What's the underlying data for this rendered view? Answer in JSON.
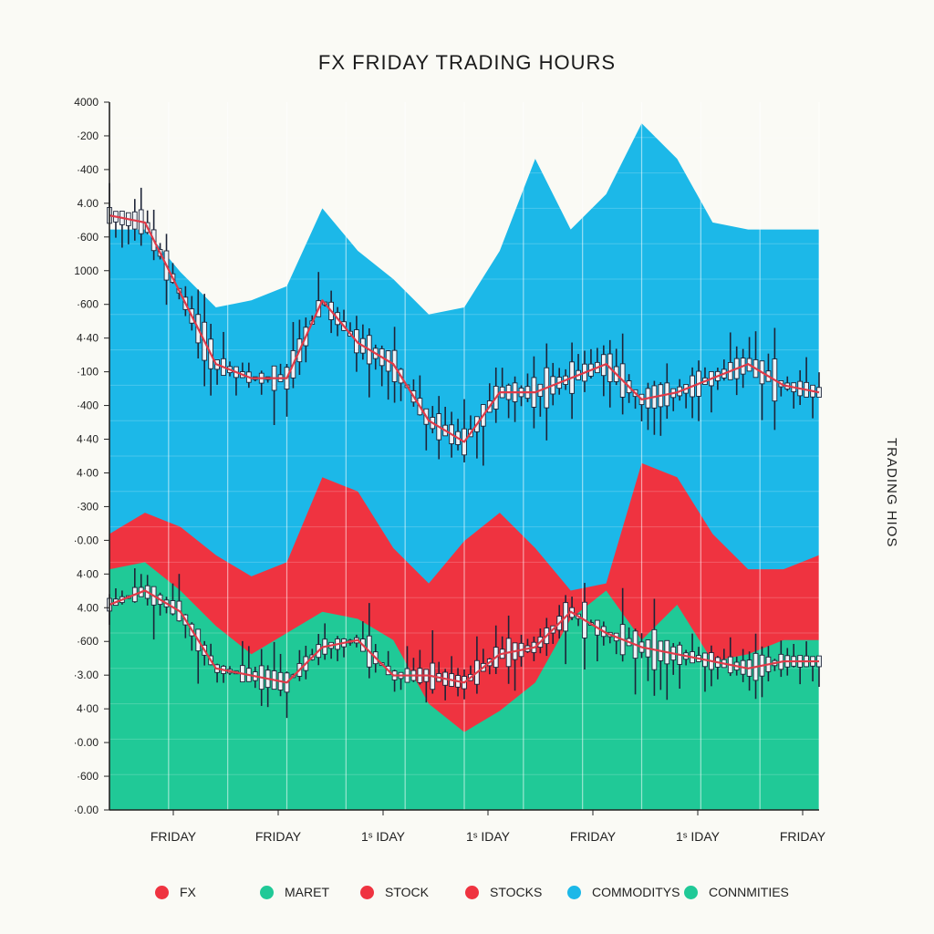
{
  "chart_data": {
    "type": "area",
    "title": "FX FRIDAY TRADING HOURS",
    "ylabel": "TRADING HIOS",
    "xlabel": "",
    "x_tick_labels": [
      "FRIDAY",
      "FRIDAY",
      "1ˢ IDAY",
      "1ˢ IDAY",
      "FRIDAY",
      "1ˢ IDAY",
      "FRIDAY"
    ],
    "y_tick_labels": [
      "4000",
      "·200",
      "·400",
      "4.00",
      "·600",
      "1000",
      "·600",
      "4·40",
      "·100",
      "·400",
      "4·40",
      "4·00",
      "·300",
      "·0.00",
      "4·00",
      "4.00",
      "·600",
      "·3.00",
      "4·00",
      "·0.00",
      "·600",
      "·0.00"
    ],
    "x": [
      0,
      0.1,
      0.2,
      0.3,
      0.4,
      0.5,
      0.6,
      0.7,
      0.8,
      0.9,
      1.0,
      1.1,
      1.2,
      1.3,
      1.4,
      1.5,
      1.6,
      1.7,
      1.8,
      1.9,
      2.0
    ],
    "ylim": [
      0,
      100
    ],
    "grid": true,
    "legend_position": "bottom",
    "series": [
      {
        "name": "CONNMITIES",
        "color": "#20c997",
        "values": [
          34,
          35,
          31,
          26,
          22,
          25,
          28,
          27,
          24,
          15,
          11,
          14,
          18,
          27,
          31,
          24,
          29,
          21,
          22,
          24,
          24
        ]
      },
      {
        "name": "STOCKS",
        "color": "#ef3340",
        "values": [
          39,
          42,
          40,
          36,
          33,
          35,
          47,
          45,
          37,
          32,
          38,
          42,
          37,
          31,
          32,
          49,
          47,
          39,
          34,
          34,
          36
        ]
      },
      {
        "name": "COMMODITYS",
        "color": "#1cb8e8",
        "values": [
          82,
          82,
          76,
          71,
          72,
          74,
          85,
          79,
          75,
          70,
          71,
          79,
          92,
          82,
          87,
          97,
          92,
          83,
          82,
          82,
          82
        ]
      },
      {
        "name": "FX",
        "color": "#e03a48",
        "values": [
          84,
          83,
          73,
          63,
          61,
          61,
          72,
          66,
          63,
          55,
          52,
          59,
          59,
          61,
          63,
          58,
          59,
          61,
          63,
          60,
          59
        ]
      },
      {
        "name": "MARET",
        "color": "#e03a48",
        "values": [
          29,
          31,
          28,
          20,
          19,
          18,
          23,
          24,
          19,
          19,
          18,
          22,
          23,
          28,
          25,
          23,
          22,
          21,
          20,
          21,
          21
        ]
      }
    ]
  },
  "legend": [
    {
      "label": "FX",
      "color": "#ef3340"
    },
    {
      "label": "MARET",
      "color": "#20c997"
    },
    {
      "label": "STOCK",
      "color": "#ef3340"
    },
    {
      "label": "STOCKS",
      "color": "#ef3340"
    },
    {
      "label": "COMMODITYS",
      "color": "#1cb8e8"
    },
    {
      "label": "CONNMITIES",
      "color": "#20c997"
    }
  ]
}
